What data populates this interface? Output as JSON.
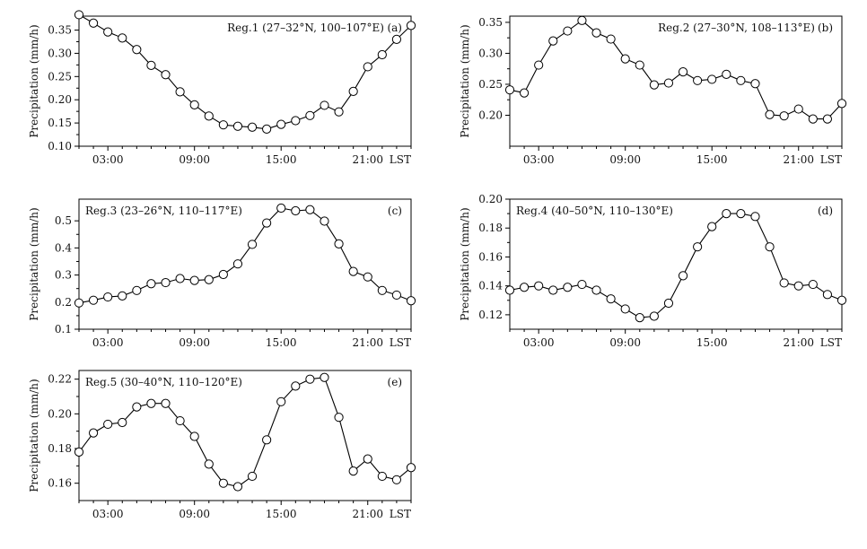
{
  "chart_data": [
    {
      "type": "line",
      "panel": "(a)",
      "title": "Reg.1 (27–32°N, 100–107°E)",
      "ylabel": "Precipitation (mm/h)",
      "x_ticks": [
        "03:00",
        "09:00",
        "15:00",
        "21:00"
      ],
      "x_end_label": "LST",
      "ylim": [
        0.1,
        0.38
      ],
      "y_ticks": [
        "0.10",
        "0.15",
        "0.20",
        "0.25",
        "0.30",
        "0.35"
      ],
      "values": [
        0.383,
        0.365,
        0.346,
        0.333,
        0.308,
        0.274,
        0.254,
        0.217,
        0.189,
        0.165,
        0.146,
        0.143,
        0.141,
        0.137,
        0.147,
        0.155,
        0.166,
        0.188,
        0.174,
        0.218,
        0.271,
        0.297,
        0.33,
        0.36
      ]
    },
    {
      "type": "line",
      "panel": "(b)",
      "title": "Reg.2 (27–30°N, 108–113°E)",
      "ylabel": "Precipitation (mm/h)",
      "x_ticks": [
        "03:00",
        "09:00",
        "15:00",
        "21:00"
      ],
      "x_end_label": "LST",
      "ylim": [
        0.15,
        0.36
      ],
      "y_ticks": [
        "0.20",
        "0.25",
        "0.30",
        "0.35"
      ],
      "values": [
        0.241,
        0.236,
        0.281,
        0.32,
        0.336,
        0.353,
        0.333,
        0.323,
        0.291,
        0.281,
        0.249,
        0.252,
        0.27,
        0.256,
        0.258,
        0.266,
        0.256,
        0.251,
        0.201,
        0.199,
        0.21,
        0.194,
        0.194,
        0.219
      ]
    },
    {
      "type": "line",
      "panel": "(c)",
      "title": "Reg.3 (23–26°N, 110–117°E)",
      "ylabel": "Precipitation (mm/h)",
      "x_ticks": [
        "03:00",
        "09:00",
        "15:00",
        "21:00"
      ],
      "x_end_label": "LST",
      "ylim": [
        0.1,
        0.58
      ],
      "y_ticks": [
        "0.1",
        "0.2",
        "0.3",
        "0.4",
        "0.5"
      ],
      "values": [
        0.197,
        0.207,
        0.219,
        0.223,
        0.243,
        0.268,
        0.272,
        0.287,
        0.28,
        0.283,
        0.302,
        0.341,
        0.413,
        0.492,
        0.547,
        0.537,
        0.541,
        0.499,
        0.415,
        0.313,
        0.293,
        0.243,
        0.226,
        0.205
      ]
    },
    {
      "type": "line",
      "panel": "(d)",
      "title": "Reg.4 (40–50°N, 110–130°E)",
      "ylabel": "Precipitation (mm/h)",
      "x_ticks": [
        "03:00",
        "09:00",
        "15:00",
        "21:00"
      ],
      "x_end_label": "LST",
      "ylim": [
        0.11,
        0.2
      ],
      "y_ticks": [
        "0.12",
        "0.14",
        "0.16",
        "0.18",
        "0.20"
      ],
      "values": [
        0.137,
        0.139,
        0.14,
        0.137,
        0.139,
        0.141,
        0.137,
        0.131,
        0.124,
        0.118,
        0.119,
        0.128,
        0.147,
        0.167,
        0.181,
        0.19,
        0.19,
        0.188,
        0.167,
        0.142,
        0.14,
        0.141,
        0.134,
        0.13
      ]
    },
    {
      "type": "line",
      "panel": "(e)",
      "title": "Reg.5 (30–40°N, 110–120°E)",
      "ylabel": "Precipitation (mm/h)",
      "x_ticks": [
        "03:00",
        "09:00",
        "15:00",
        "21:00"
      ],
      "x_end_label": "LST",
      "ylim": [
        0.15,
        0.225
      ],
      "y_ticks": [
        "0.16",
        "0.18",
        "0.20",
        "0.22"
      ],
      "values": [
        0.178,
        0.189,
        0.194,
        0.195,
        0.204,
        0.206,
        0.206,
        0.196,
        0.187,
        0.171,
        0.16,
        0.158,
        0.164,
        0.185,
        0.207,
        0.216,
        0.22,
        0.221,
        0.198,
        0.167,
        0.174,
        0.164,
        0.162,
        0.169
      ]
    }
  ]
}
